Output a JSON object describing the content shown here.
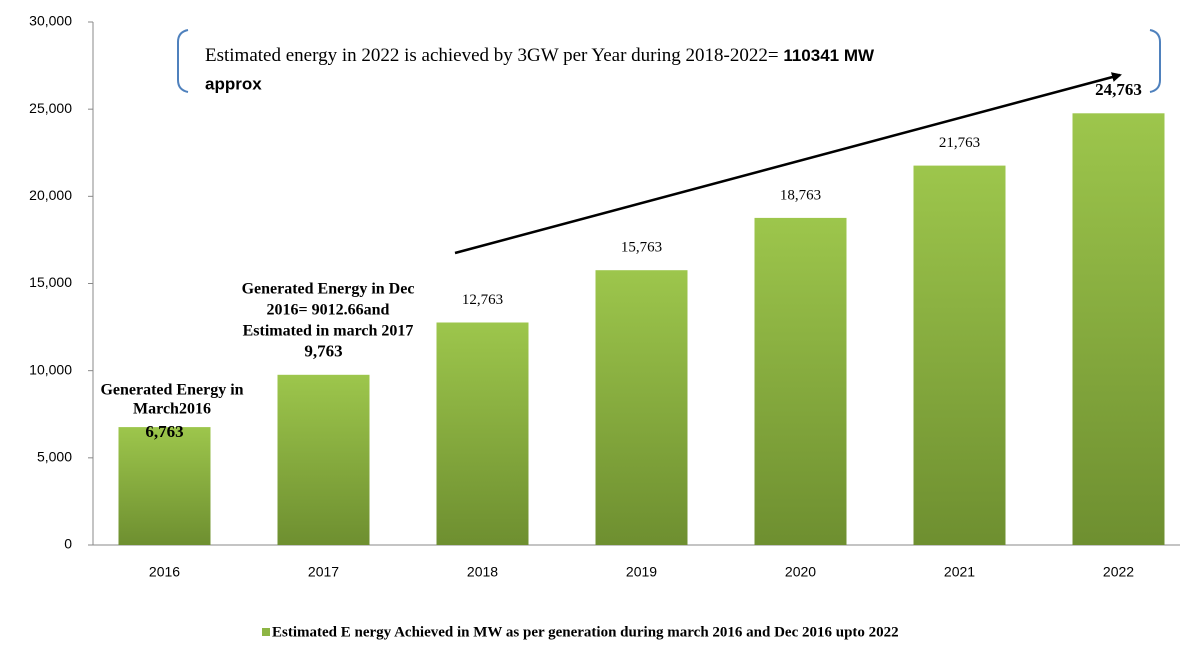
{
  "chart_data": {
    "type": "bar",
    "categories": [
      "2016",
      "2017",
      "2018",
      "2019",
      "2020",
      "2021",
      "2022"
    ],
    "series": [
      {
        "name": "Estimated E nergy Achieved in MW as per generation during march 2016 and Dec 2016 upto 2022",
        "color": "#8db544",
        "values": [
          6763,
          9763,
          12763,
          15763,
          18763,
          21763,
          24763
        ],
        "value_labels": [
          "6,763",
          "9,763",
          "12,763",
          "15,763",
          "18,763",
          "21,763",
          "24,763"
        ],
        "label_bold": [
          true,
          true,
          false,
          false,
          false,
          false,
          true
        ]
      }
    ],
    "ylim": [
      0,
      30000
    ],
    "yticks": [
      0,
      {
        "value": 5000,
        "label": "5,000"
      },
      {
        "value": 10000,
        "label": "10,000"
      },
      {
        "value": 15000,
        "label": "15,000"
      },
      {
        "value": 20000,
        "label": "20,000"
      },
      {
        "value": 25000,
        "label": "25,000"
      },
      {
        "value": 30000,
        "label": "30,000"
      }
    ],
    "grid": false,
    "legend": "bottom",
    "annotations": [
      {
        "lines": [
          "Generated Energy in",
          "March2016"
        ]
      },
      {
        "lines": [
          "Generated Energy in Dec",
          "2016= 9012.66and",
          "Estimated in march 2017"
        ]
      },
      {
        "text": "Estimated energy in 2022 is achieved by 3GW per Year during 2018-2022= ",
        "bold": "110341 MW",
        "after": "approx"
      }
    ]
  }
}
